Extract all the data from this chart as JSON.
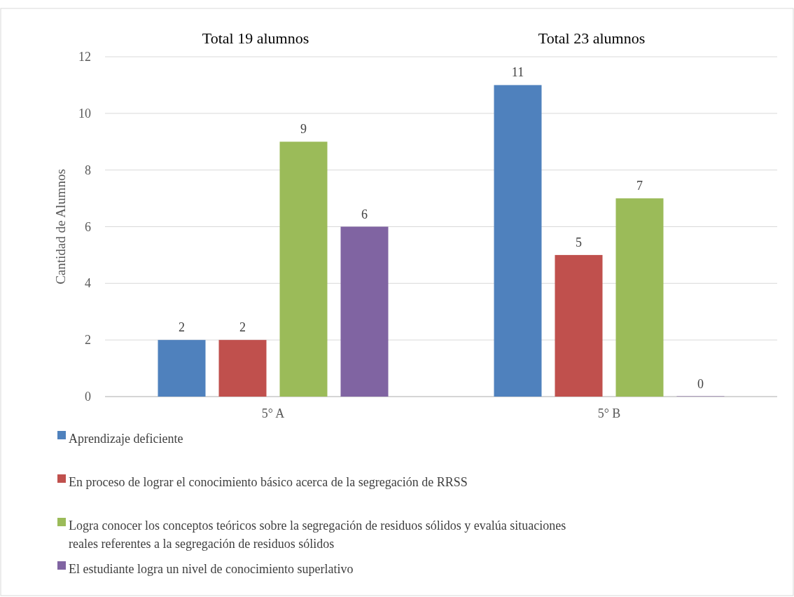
{
  "chart_data": {
    "type": "bar",
    "ylabel": "Cantidad de Alumnos",
    "categories": [
      "5° A",
      "5° B"
    ],
    "series": [
      {
        "name": "Aprendizaje deficiente",
        "color": "#4f81bd",
        "values": [
          2,
          11
        ]
      },
      {
        "name": "En proceso de lograr el conocimiento básico acerca de la segregación de RRSS",
        "color": "#c0504d",
        "values": [
          2,
          5
        ]
      },
      {
        "name": "Logra conocer los conceptos teóricos sobre la segregación de residuos sólidos y evalúa situaciones reales referentes a la segregación de residuos sólidos",
        "color": "#9bbb59",
        "values": [
          9,
          7
        ]
      },
      {
        "name": "El estudiante logra un nivel de conocimiento superlativo",
        "color": "#8064a2",
        "values": [
          6,
          0
        ]
      }
    ],
    "ylim": [
      0,
      12
    ],
    "yticks": [
      0,
      2,
      4,
      6,
      8,
      10,
      12
    ],
    "grid": "y",
    "legend": "bottom",
    "data_labels": true,
    "annotations": [
      "Total 19 alumnos",
      "Total 23 alumnos"
    ]
  }
}
